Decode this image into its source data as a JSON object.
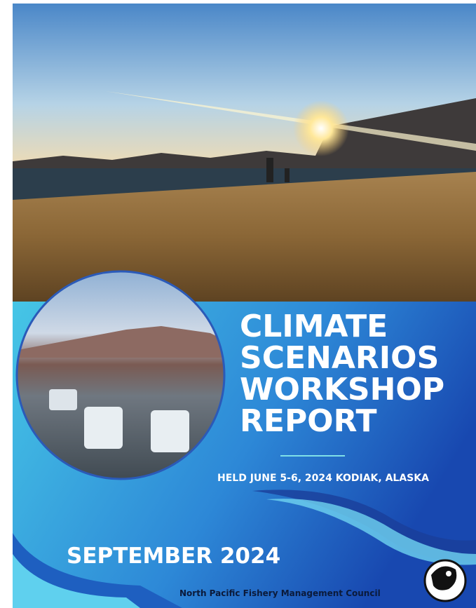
{
  "cover": {
    "title_lines": [
      "CLIMATE",
      "SCENARIOS",
      "WORKSHOP",
      "REPORT"
    ],
    "held": "HELD JUNE 5-6, 2024 KODIAK, ALASKA",
    "date": "SEPTEMBER 2024",
    "publisher": "North Pacific Fishery Management Council"
  }
}
